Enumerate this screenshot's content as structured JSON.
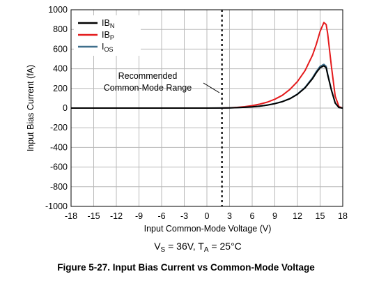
{
  "chart_data": {
    "type": "line",
    "xlabel": "Input Common-Mode Voltage (V)",
    "ylabel": "Input Bias Current (fA)",
    "xlim": [
      -18,
      18
    ],
    "ylim": [
      -1000,
      1000
    ],
    "xticks": [
      -18,
      -15,
      -12,
      -9,
      -6,
      -3,
      0,
      3,
      6,
      9,
      12,
      15,
      18
    ],
    "yticks": [
      -1000,
      -800,
      -600,
      -400,
      -200,
      0,
      200,
      400,
      600,
      800,
      1000
    ],
    "grid": true,
    "legend_position": "top-left",
    "series": [
      {
        "name": "IB",
        "subscript": "N",
        "color": "#000000",
        "x": [
          -18,
          -15,
          -12,
          -9,
          -6,
          -3,
          0,
          2,
          3,
          4,
          5,
          6,
          7,
          8,
          9,
          10,
          11,
          12,
          13,
          14,
          14.5,
          15,
          15.5,
          15.8,
          16,
          16.5,
          17,
          17.5,
          18
        ],
        "y": [
          0,
          0,
          0,
          0,
          0,
          0,
          0,
          1,
          2,
          4,
          8,
          13,
          20,
          30,
          45,
          65,
          95,
          140,
          205,
          300,
          360,
          410,
          430,
          410,
          340,
          180,
          50,
          5,
          0
        ]
      },
      {
        "name": "IB",
        "subscript": "P",
        "color": "#e41a1c",
        "x": [
          -18,
          -15,
          -12,
          -9,
          -6,
          -3,
          0,
          2,
          3,
          4,
          5,
          6,
          7,
          8,
          9,
          10,
          11,
          12,
          13,
          14,
          14.5,
          15,
          15.5,
          15.8,
          16,
          16.5,
          17,
          17.5,
          18
        ],
        "y": [
          0,
          0,
          0,
          0,
          0,
          0,
          0,
          1,
          3,
          7,
          14,
          25,
          40,
          60,
          90,
          130,
          190,
          270,
          380,
          540,
          650,
          780,
          870,
          850,
          760,
          420,
          120,
          15,
          0
        ]
      },
      {
        "name": "I",
        "subscript": "OS",
        "color": "#3f6f8c",
        "x": [
          -18,
          -15,
          -12,
          -9,
          -6,
          -3,
          0,
          2,
          3,
          4,
          5,
          6,
          7,
          8,
          9,
          10,
          11,
          12,
          13,
          14,
          14.5,
          15,
          15.5,
          15.8,
          16,
          16.5,
          17,
          17.5,
          18
        ],
        "y": [
          0,
          0,
          0,
          0,
          0,
          0,
          0,
          1,
          2,
          4,
          8,
          13,
          20,
          31,
          46,
          66,
          97,
          143,
          210,
          310,
          372,
          425,
          445,
          425,
          350,
          185,
          52,
          6,
          0
        ]
      }
    ],
    "annotation": {
      "lines": [
        "Recommended",
        "Common-Mode Range"
      ],
      "x_marker": 2
    }
  },
  "conditions": {
    "vs_main": "V",
    "vs_sub": "S",
    "vs_value": " = 36V, T",
    "ta_sub": "A",
    "ta_value": " = 25°C"
  },
  "caption": "Figure 5-27. Input Bias Current vs Common-Mode Voltage"
}
